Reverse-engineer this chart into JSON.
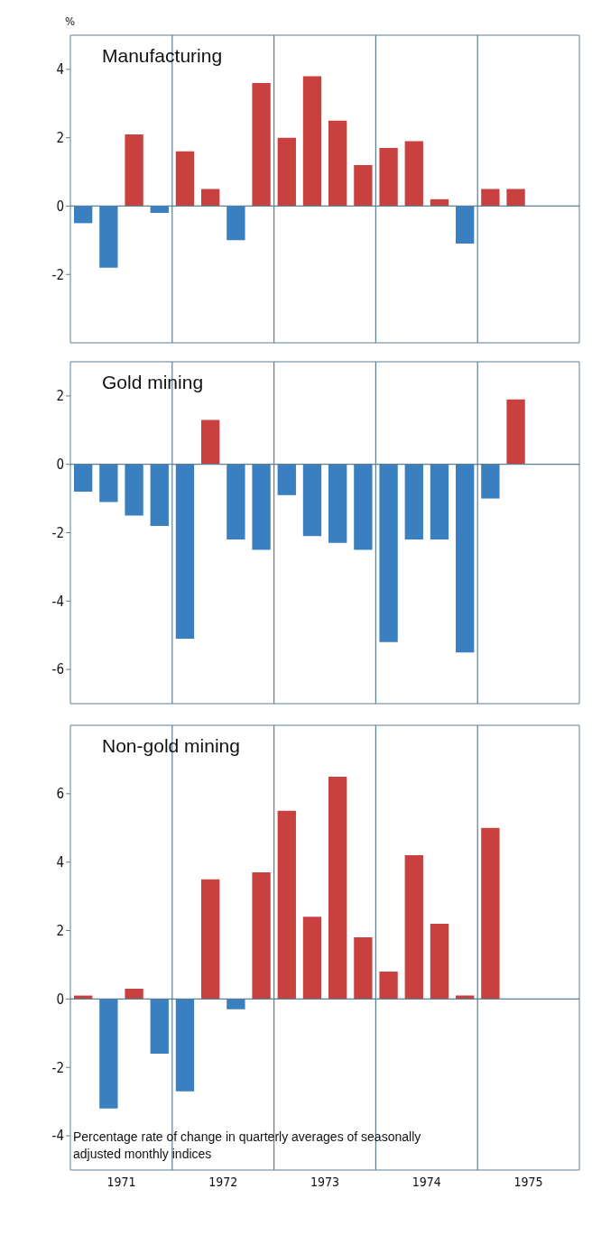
{
  "chart_data": [
    {
      "type": "bar",
      "title": "Manufacturing",
      "ylabel": "%",
      "x": [
        1971.125,
        1971.375,
        1971.625,
        1971.875,
        1972.125,
        1972.375,
        1972.625,
        1972.875,
        1973.125,
        1973.375,
        1973.625,
        1973.875,
        1974.125,
        1974.375,
        1974.625,
        1974.875,
        1975.125,
        1975.375
      ],
      "values": [
        -0.5,
        -1.8,
        2.1,
        -0.2,
        1.6,
        0.5,
        -1.0,
        3.6,
        2.0,
        3.8,
        2.5,
        1.2,
        1.7,
        1.9,
        0.2,
        -1.1,
        0.5,
        0.5
      ],
      "colors": [
        "#3a7fc0",
        "#3a7fc0",
        "#c8413f",
        "#3a7fc0",
        "#c8413f",
        "#c8413f",
        "#3a7fc0",
        "#c8413f",
        "#c8413f",
        "#c8413f",
        "#c8413f",
        "#c8413f",
        "#c8413f",
        "#c8413f",
        "#c8413f",
        "#3a7fc0",
        "#c8413f",
        "#c8413f"
      ],
      "xlim": [
        1971,
        1976
      ],
      "ylim": [
        -4,
        5
      ],
      "yticks": [
        -2,
        0,
        2,
        4
      ],
      "tick_labels": "y",
      "ref_lines": [
        {
          "axis": "y",
          "value": 0
        },
        {
          "axis": "x",
          "value": 1972
        },
        {
          "axis": "x",
          "value": 1973
        },
        {
          "axis": "x",
          "value": 1974
        },
        {
          "axis": "x",
          "value": 1975
        }
      ]
    },
    {
      "type": "bar",
      "title": "Gold mining",
      "x": [
        1971.125,
        1971.375,
        1971.625,
        1971.875,
        1972.125,
        1972.375,
        1972.625,
        1972.875,
        1973.125,
        1973.375,
        1973.625,
        1973.875,
        1974.125,
        1974.375,
        1974.625,
        1974.875,
        1975.125,
        1975.375
      ],
      "values": [
        -0.8,
        -1.1,
        -1.5,
        -1.8,
        -5.1,
        1.3,
        -2.2,
        -2.5,
        -0.9,
        -2.1,
        -2.3,
        -2.5,
        -5.2,
        -2.2,
        -2.2,
        -5.5,
        -1.0,
        1.9
      ],
      "colors": [
        "#3a7fc0",
        "#3a7fc0",
        "#3a7fc0",
        "#3a7fc0",
        "#3a7fc0",
        "#c8413f",
        "#3a7fc0",
        "#3a7fc0",
        "#3a7fc0",
        "#3a7fc0",
        "#3a7fc0",
        "#3a7fc0",
        "#3a7fc0",
        "#3a7fc0",
        "#3a7fc0",
        "#3a7fc0",
        "#3a7fc0",
        "#c8413f"
      ],
      "xlim": [
        1971,
        1976
      ],
      "ylim": [
        -7,
        3
      ],
      "yticks": [
        -6,
        -4,
        -2,
        0,
        2
      ],
      "tick_labels": "y",
      "ref_lines": [
        {
          "axis": "y",
          "value": 0
        },
        {
          "axis": "x",
          "value": 1972
        },
        {
          "axis": "x",
          "value": 1973
        },
        {
          "axis": "x",
          "value": 1974
        },
        {
          "axis": "x",
          "value": 1975
        }
      ]
    },
    {
      "type": "bar",
      "title": "Non-gold mining",
      "x": [
        1971.125,
        1971.375,
        1971.625,
        1971.875,
        1972.125,
        1972.375,
        1972.625,
        1972.875,
        1973.125,
        1973.375,
        1973.625,
        1973.875,
        1974.125,
        1974.375,
        1974.625,
        1974.875,
        1975.125
      ],
      "values": [
        0.1,
        -3.2,
        0.3,
        -1.6,
        -2.7,
        3.5,
        -0.3,
        3.7,
        5.5,
        2.4,
        6.5,
        1.8,
        0.8,
        4.2,
        2.2,
        0.1,
        5.0
      ],
      "colors": [
        "#c8413f",
        "#3a7fc0",
        "#c8413f",
        "#3a7fc0",
        "#3a7fc0",
        "#c8413f",
        "#3a7fc0",
        "#c8413f",
        "#c8413f",
        "#c8413f",
        "#c8413f",
        "#c8413f",
        "#c8413f",
        "#c8413f",
        "#c8413f",
        "#c8413f",
        "#c8413f"
      ],
      "xlim": [
        1971,
        1976
      ],
      "xticks": [
        {
          "value": 1971.5,
          "label": "1971"
        },
        {
          "value": 1972.5,
          "label": "1972"
        },
        {
          "value": 1973.5,
          "label": "1973"
        },
        {
          "value": 1974.5,
          "label": "1974"
        },
        {
          "value": 1975.5,
          "label": "1975"
        }
      ],
      "ylim": [
        -5,
        8
      ],
      "yticks": [
        -4,
        -2,
        0,
        2,
        4,
        6
      ],
      "ref_lines": [
        {
          "axis": "y",
          "value": 0
        },
        {
          "axis": "x",
          "value": 1972
        },
        {
          "axis": "x",
          "value": 1973
        },
        {
          "axis": "x",
          "value": 1974
        },
        {
          "axis": "x",
          "value": 1975
        }
      ],
      "annotations": [
        "Percentage rate of change in quarterly averages of seasonally adjusted monthly indices"
      ]
    }
  ]
}
